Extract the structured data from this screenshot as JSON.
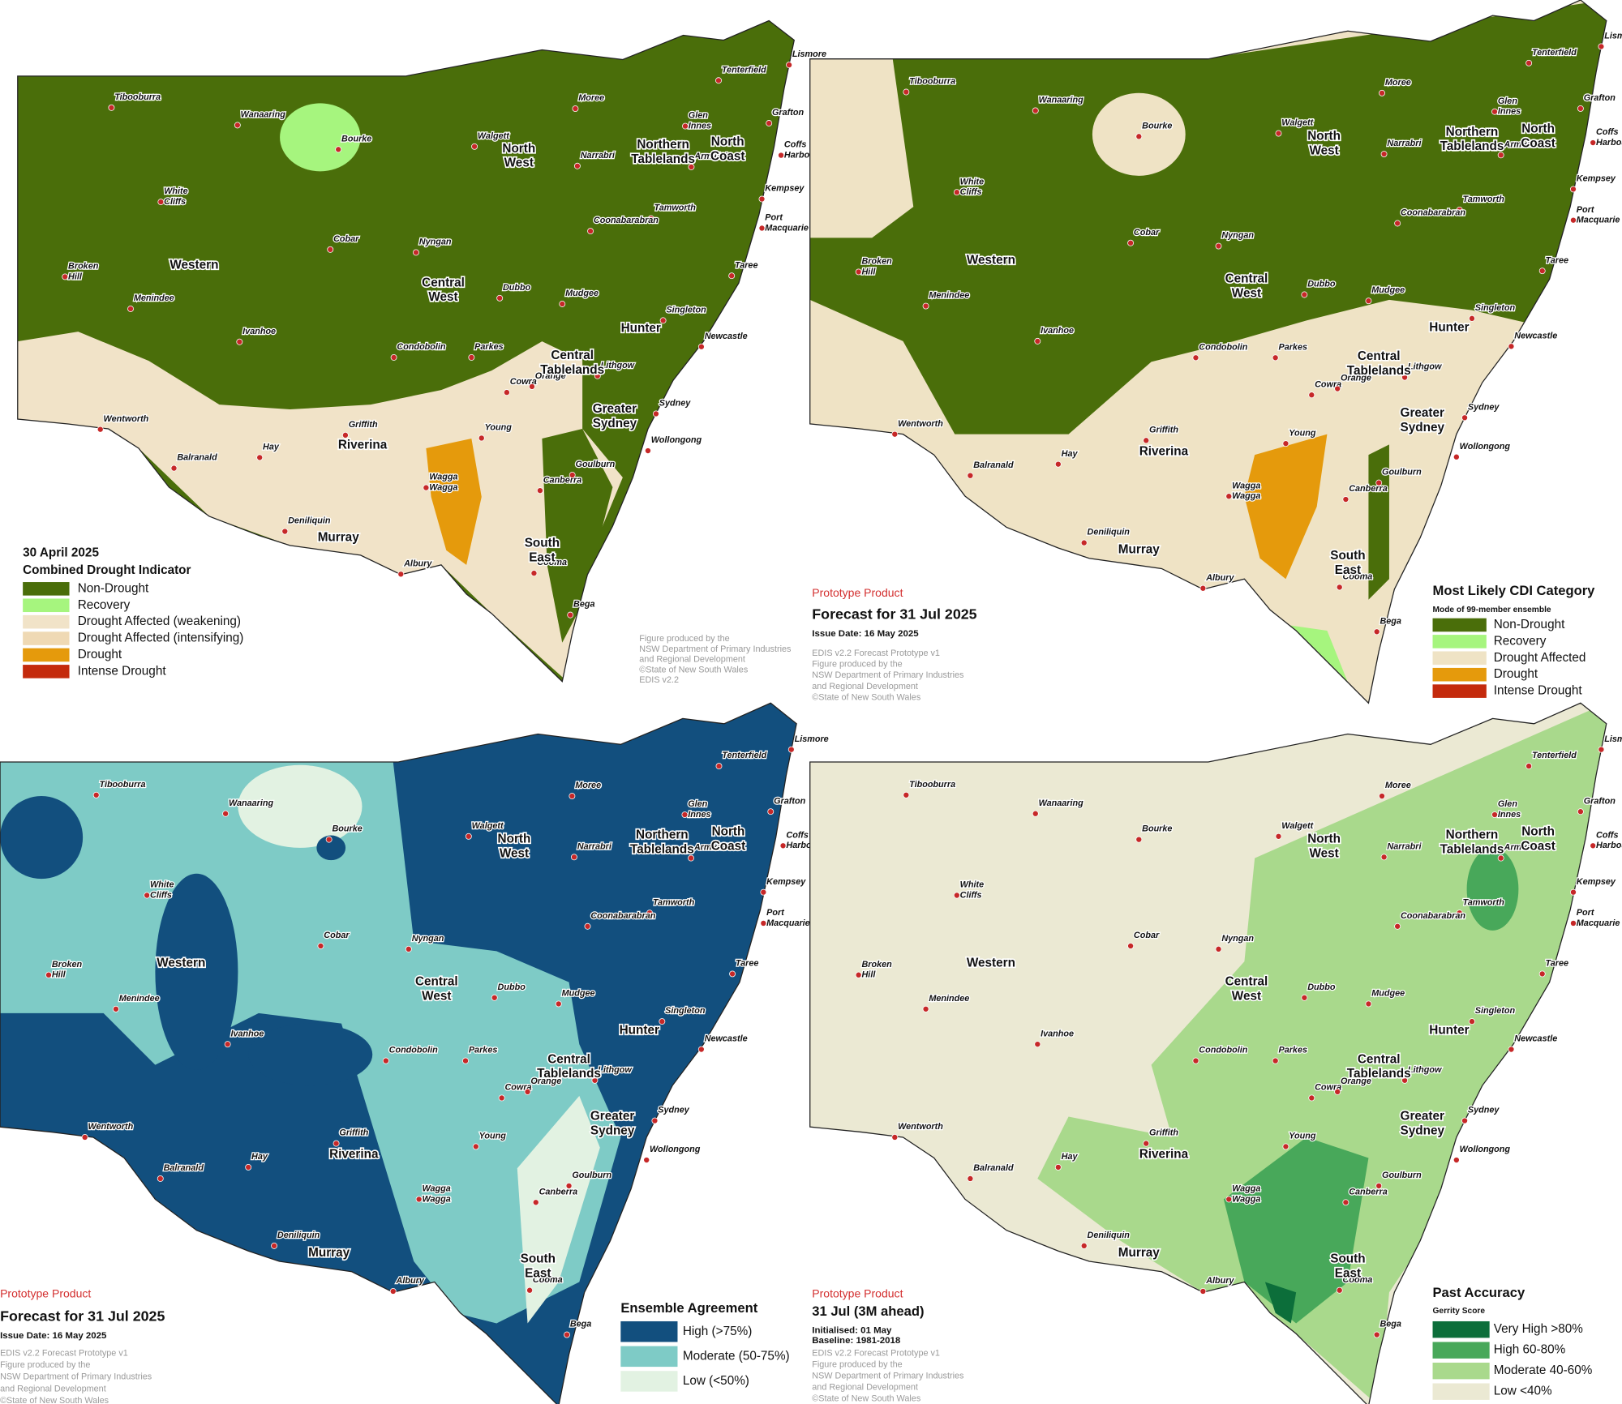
{
  "towns": [
    [
      "Tibooburra"
    ],
    [
      "Wanaaring"
    ],
    [
      "Bourke"
    ],
    [
      "White",
      "Cliffs"
    ],
    [
      "Cobar"
    ],
    [
      "Nyngan"
    ],
    [
      "Broken",
      "Hill"
    ],
    [
      "Menindee"
    ],
    [
      "Ivanhoe"
    ],
    [
      "Wentworth"
    ],
    [
      "Balranald"
    ],
    [
      "Hay"
    ],
    [
      "Griffith"
    ],
    [
      "Deniliquin"
    ],
    [
      "Albury"
    ],
    [
      "Wagga",
      "Wagga"
    ],
    [
      "Young"
    ],
    [
      "Cowra"
    ],
    [
      "Parkes"
    ],
    [
      "Condobolin"
    ],
    [
      "Dubbo"
    ],
    [
      "Mudgee"
    ],
    [
      "Orange"
    ],
    [
      "Lithgow"
    ],
    [
      "Sydney"
    ],
    [
      "Wollongong"
    ],
    [
      "Canberra"
    ],
    [
      "Cooma"
    ],
    [
      "Bega"
    ],
    [
      "Goulburn"
    ],
    [
      "Newcastle"
    ],
    [
      "Singleton"
    ],
    [
      "Taree"
    ],
    [
      "Port",
      "Macquarie"
    ],
    [
      "Kempsey"
    ],
    [
      "Coffs",
      "Harbour"
    ],
    [
      "Grafton"
    ],
    [
      "Lismore"
    ],
    [
      "Tenterfield"
    ],
    [
      "Glen",
      "Innes"
    ],
    [
      "Armidale"
    ],
    [
      "Tamworth"
    ],
    [
      "Narrabri"
    ],
    [
      "Moree"
    ],
    [
      "Walgett"
    ],
    [
      "Coonabarabran"
    ]
  ],
  "regions": [
    [
      "Western"
    ],
    [
      "Central",
      "West"
    ],
    [
      "North",
      "West"
    ],
    [
      "Northern",
      "Tablelands"
    ],
    [
      "North",
      "Coast"
    ],
    [
      "Hunter"
    ],
    [
      "Central",
      "Tablelands"
    ],
    [
      "Greater",
      "Sydney"
    ],
    [
      "Riverina"
    ],
    [
      "Murray"
    ],
    [
      "South",
      "East"
    ]
  ],
  "panels": [
    {
      "heading": [
        "30 April 2025",
        "Combined Drought Indicator"
      ],
      "legend": [
        {
          "label": "Non-Drought",
          "color": "#4a6e0a"
        },
        {
          "label": "Recovery",
          "color": "#a6f57e"
        },
        {
          "label": "Drought Affected (weakening)",
          "color": "#f1e3c8"
        },
        {
          "label": "Drought Affected (intensifying)",
          "color": "#efd9b4"
        },
        {
          "label": "Drought",
          "color": "#e59a0c"
        },
        {
          "label": "Intense Drought",
          "color": "#c42a0c"
        }
      ],
      "credits": [
        "Figure produced by the",
        "NSW Department of Primary Industries",
        "and Regional Development",
        "©State of New South Wales",
        "EDIS v2.2"
      ]
    },
    {
      "tag": "Prototype Product",
      "heading": [
        "Forecast for 31 Jul 2025",
        "Issue Date: 16 May 2025"
      ],
      "legend_title": "Most Likely CDI Category",
      "legend_subtitle": "Mode of 99-member ensemble",
      "legend": [
        {
          "label": "Non-Drought",
          "color": "#4a6e0a"
        },
        {
          "label": "Recovery",
          "color": "#a6f57e"
        },
        {
          "label": "Drought Affected",
          "color": "#efe3c5"
        },
        {
          "label": "Drought",
          "color": "#e59a0c"
        },
        {
          "label": "Intense Drought",
          "color": "#c42a0c"
        }
      ],
      "credits": [
        "EDIS v2.2 Forecast Prototype v1",
        "Figure produced by the",
        "NSW Department of Primary Industries",
        "and Regional Development",
        "©State of New South Wales"
      ]
    },
    {
      "tag": "Prototype Product",
      "heading": [
        "Forecast for 31 Jul 2025",
        "Issue Date: 16 May 2025"
      ],
      "legend_title": "Ensemble Agreement",
      "legend": [
        {
          "label": "High (>75%)",
          "color": "#124f7e"
        },
        {
          "label": "Moderate (50-75%)",
          "color": "#7ecbc6"
        },
        {
          "label": "Low (<50%)",
          "color": "#e2f2e2"
        }
      ],
      "credits": [
        "EDIS v2.2 Forecast Prototype v1",
        "Figure produced by the",
        "NSW Department of Primary Industries",
        "and Regional Development",
        "©State of New South Wales"
      ]
    },
    {
      "tag": "Prototype Product",
      "heading": [
        "31 Jul (3M ahead)",
        "Initialised: 01 May",
        "Baseline: 1981-2018"
      ],
      "legend_title": "Past Accuracy",
      "legend_subtitle": "Gerrity Score",
      "legend": [
        {
          "label": "Very High >80%",
          "color": "#0c6e3a"
        },
        {
          "label": "High 60-80%",
          "color": "#48a85a"
        },
        {
          "label": "Moderate 40-60%",
          "color": "#a9d98c"
        },
        {
          "label": "Low <40%",
          "color": "#ebe9d3"
        }
      ],
      "credits": [
        "EDIS v2.2 Forecast Prototype v1",
        "Figure produced by the",
        "NSW Department of Primary Industries",
        "and Regional Development",
        "©State of New South Wales"
      ]
    }
  ]
}
